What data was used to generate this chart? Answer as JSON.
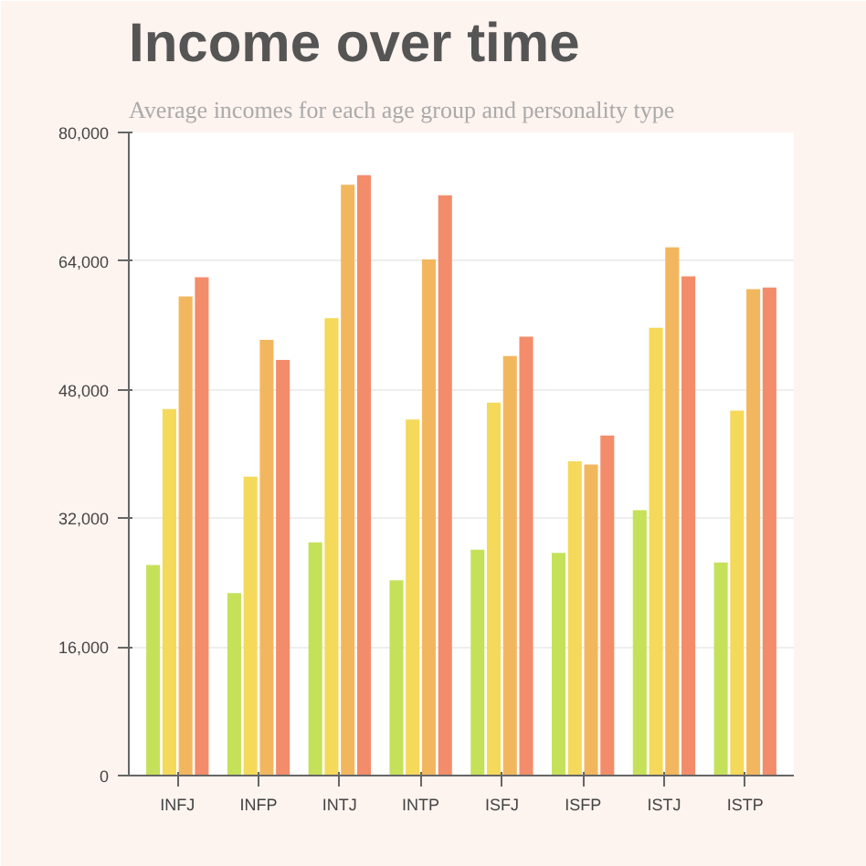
{
  "chart_data": {
    "type": "bar",
    "title": "Income over time",
    "subtitle": "Average incomes for each age group and personality type",
    "categories": [
      "INFJ",
      "INFP",
      "INTJ",
      "INTP",
      "ISFJ",
      "ISFP",
      "ISTJ",
      "ISTP"
    ],
    "series": [
      {
        "color": "#c5e15a",
        "values": [
          26200,
          22700,
          29000,
          24300,
          28100,
          27700,
          33000,
          26500
        ]
      },
      {
        "color": "#f4d95a",
        "values": [
          45600,
          37200,
          56900,
          44300,
          46400,
          39100,
          55700,
          45400
        ]
      },
      {
        "color": "#f2b75e",
        "values": [
          59600,
          54200,
          73500,
          64200,
          52200,
          38700,
          65700,
          60500
        ]
      },
      {
        "color": "#f38c6a",
        "values": [
          62000,
          51700,
          74700,
          72200,
          54600,
          42300,
          62100,
          60700
        ]
      }
    ],
    "ylim": [
      0,
      80000
    ],
    "yticks": [
      {
        "value": 0,
        "label": "0"
      },
      {
        "value": 16000,
        "label": "16,000"
      },
      {
        "value": 32000,
        "label": "32,000"
      },
      {
        "value": 48000,
        "label": "48,000"
      },
      {
        "value": 64000,
        "label": "64,000"
      },
      {
        "value": 80000,
        "label": "80,000"
      }
    ],
    "grid": "y"
  }
}
